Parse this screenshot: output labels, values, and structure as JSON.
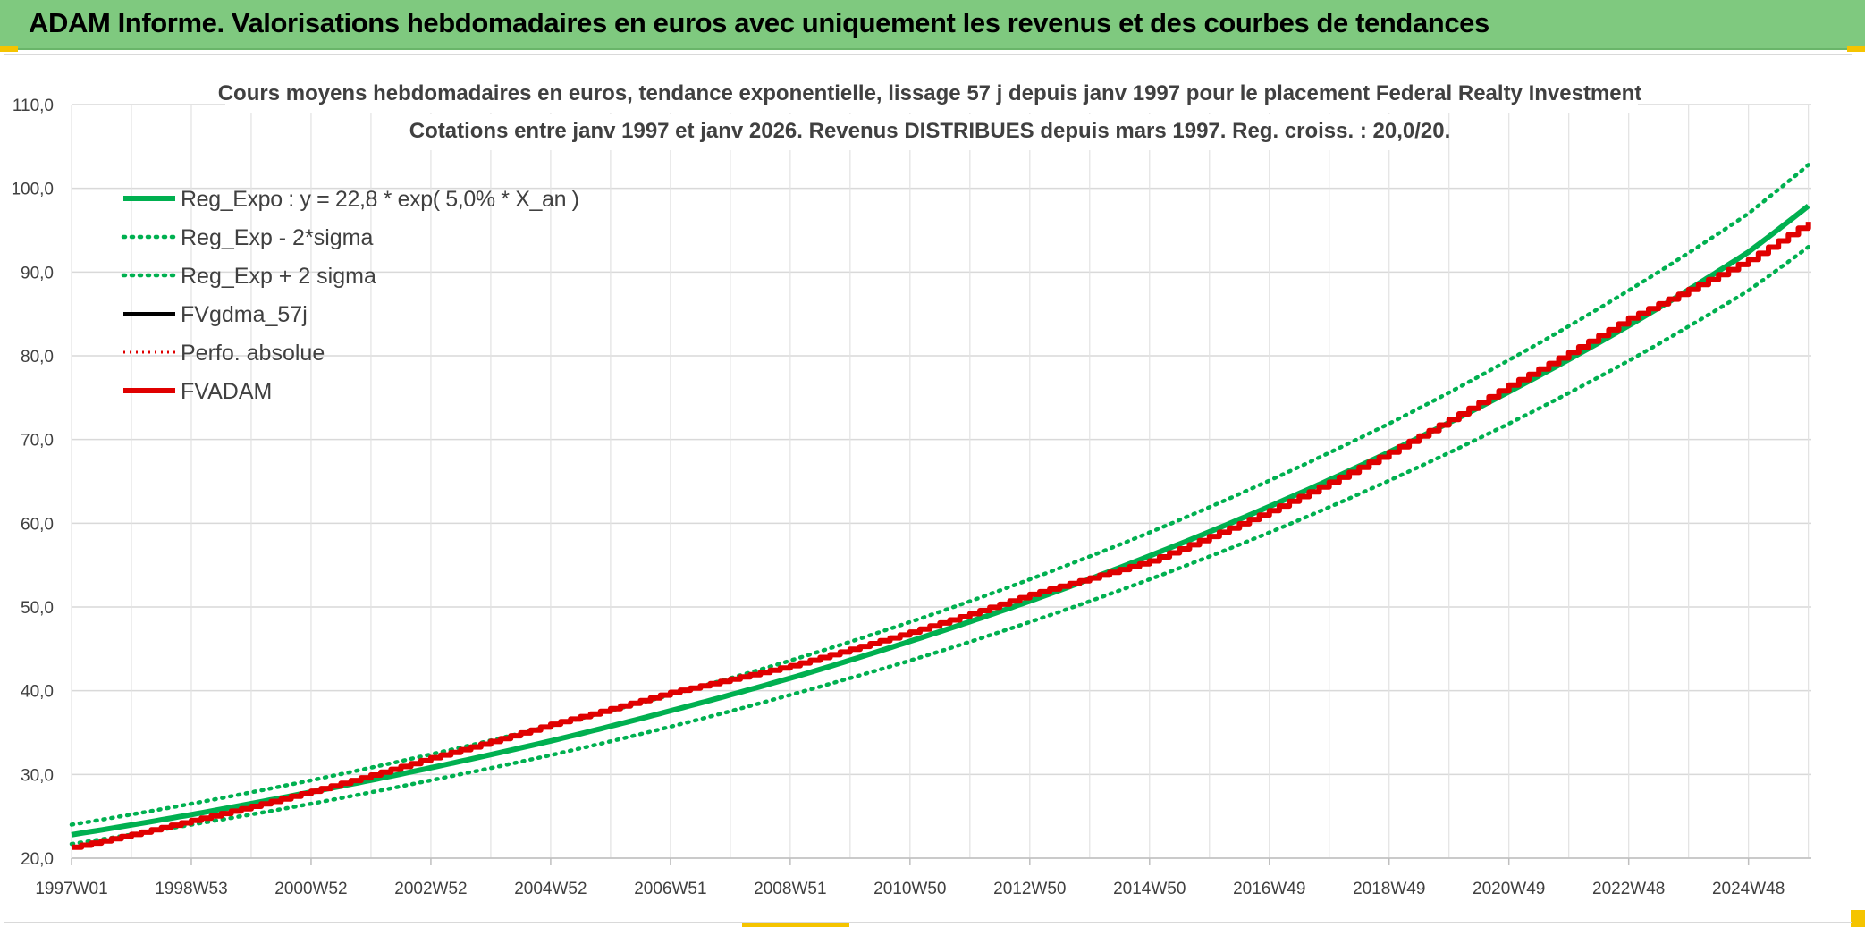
{
  "header": {
    "title": "ADAM Informe. Valorisations hebdomadaires en euros avec uniquement les revenus et des courbes de tendances"
  },
  "colors": {
    "header_bg": "#7fc97f",
    "reg_green": "#00b050",
    "adam_red": "#e00000",
    "grid": "#d9d9d9"
  },
  "chart_data": {
    "type": "line",
    "title": "Cours moyens hebdomadaires en euros, tendance exponentielle, lissage 57 j depuis janv 1997 pour le placement Federal Realty Investment",
    "subtitle": "Cotations entre janv 1997 et janv 2026. Revenus DISTRIBUES depuis mars 1997. Reg. croiss. : 20,0/20.",
    "xlabel": "",
    "ylabel": "",
    "ylim": [
      20,
      110
    ],
    "yticks": [
      "20,0",
      "30,0",
      "40,0",
      "50,0",
      "60,0",
      "70,0",
      "80,0",
      "90,0",
      "100,0",
      "110,0"
    ],
    "xticks": [
      "1997W01",
      "1998W53",
      "2000W52",
      "2002W52",
      "2004W52",
      "2006W51",
      "2008W51",
      "2010W50",
      "2012W50",
      "2014W50",
      "2016W49",
      "2018W49",
      "2020W49",
      "2022W48",
      "2024W48"
    ],
    "x_range_years": [
      1997.0,
      2026.05
    ],
    "grid": true,
    "legend_position": "top-left",
    "series": [
      {
        "name": "Reg_Expo : y = 22,8 * exp( 5,0% *  X_an )",
        "style": "solid-thick-green",
        "x": [
          1997,
          1999,
          2001,
          2003,
          2005,
          2007,
          2009,
          2011,
          2013,
          2015,
          2017,
          2019,
          2021,
          2023,
          2025,
          2026
        ],
        "values": [
          22.8,
          25.2,
          27.9,
          30.8,
          34.0,
          37.6,
          41.5,
          45.9,
          50.7,
          56.1,
          62.0,
          68.5,
          75.7,
          83.6,
          92.4,
          97.9
        ]
      },
      {
        "name": "Reg_Exp - 2*sigma",
        "style": "dotted-green",
        "x": [
          1997,
          1999,
          2001,
          2003,
          2005,
          2007,
          2009,
          2011,
          2013,
          2015,
          2017,
          2019,
          2021,
          2023,
          2025,
          2026
        ],
        "values": [
          21.7,
          24.0,
          26.5,
          29.3,
          32.3,
          35.7,
          39.5,
          43.6,
          48.2,
          53.3,
          58.9,
          65.1,
          71.9,
          79.4,
          87.8,
          93.0
        ]
      },
      {
        "name": "Reg_Exp + 2 sigma",
        "style": "dotted-green",
        "x": [
          1997,
          1999,
          2001,
          2003,
          2005,
          2007,
          2009,
          2011,
          2013,
          2015,
          2017,
          2019,
          2021,
          2023,
          2025,
          2026
        ],
        "values": [
          24.0,
          26.5,
          29.3,
          32.4,
          35.8,
          39.5,
          43.6,
          48.2,
          53.3,
          58.9,
          65.1,
          71.9,
          79.5,
          87.8,
          97.0,
          102.8
        ]
      },
      {
        "name": "FVgdma_57j",
        "style": "solid-black",
        "x": [],
        "values": []
      },
      {
        "name": "Perfo. absolue",
        "style": "dotted-red",
        "x": [],
        "values": []
      },
      {
        "name": "FVADAM",
        "style": "solid-thick-red-stepped",
        "x": [
          1997,
          1999,
          2001,
          2003,
          2005,
          2007,
          2009,
          2011,
          2013,
          2015,
          2017,
          2019,
          2021,
          2023,
          2025,
          2026
        ],
        "values": [
          21.3,
          24.5,
          28.0,
          32.0,
          36.0,
          39.8,
          43.0,
          47.0,
          51.5,
          55.5,
          61.5,
          68.5,
          76.5,
          84.5,
          91.5,
          96.0
        ]
      }
    ]
  }
}
